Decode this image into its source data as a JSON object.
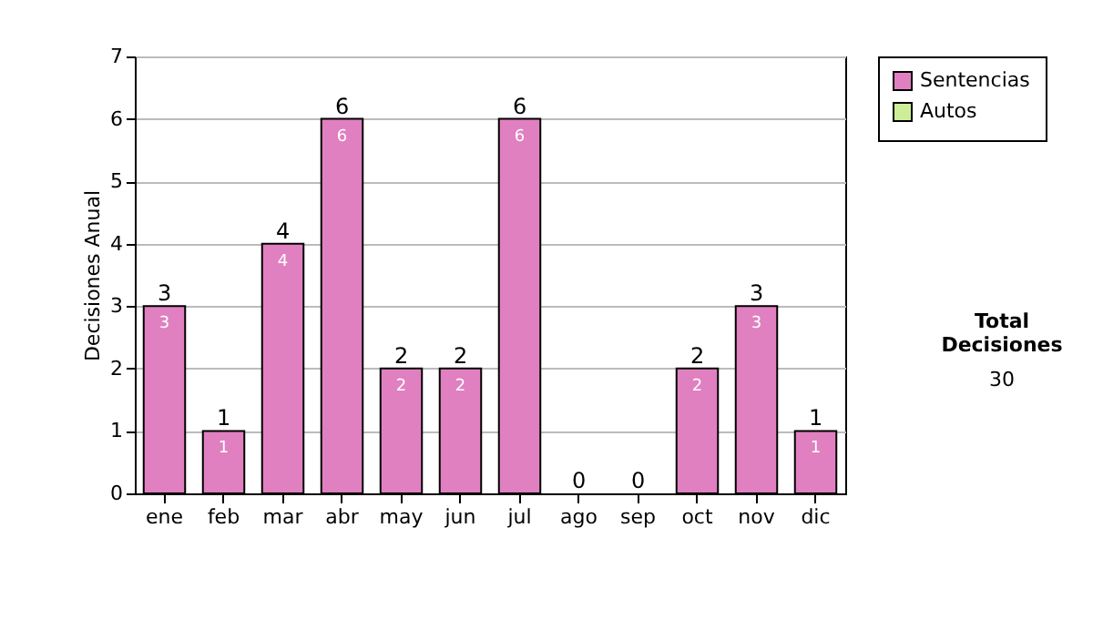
{
  "chart_data": {
    "type": "bar",
    "stacked": true,
    "ylabel": "Decisiones Anual",
    "categories": [
      "ene",
      "feb",
      "mar",
      "abr",
      "may",
      "jun",
      "jul",
      "ago",
      "sep",
      "oct",
      "nov",
      "dic"
    ],
    "series": [
      {
        "name": "Sentencias",
        "color": "#e080c0",
        "values": [
          3,
          1,
          4,
          6,
          2,
          2,
          6,
          0,
          0,
          2,
          3,
          1
        ],
        "value_labels": [
          "3",
          "1",
          "4",
          "6",
          "2",
          "2",
          "6",
          null,
          null,
          "2",
          "3",
          "1"
        ]
      },
      {
        "name": "Autos",
        "color": "#ccee99",
        "values": [
          0,
          0,
          0,
          0,
          0,
          0,
          0,
          0,
          0,
          0,
          0,
          0
        ]
      }
    ],
    "totals": [
      "3",
      "1",
      "4",
      "6",
      "2",
      "2",
      "6",
      "0",
      "0",
      "2",
      "3",
      "1"
    ],
    "ylim": [
      0,
      7
    ],
    "yticks": [
      0,
      1,
      2,
      3,
      4,
      5,
      6,
      7
    ],
    "grid": "y",
    "legend": "right",
    "annotations": [
      "Total Decisiones",
      "30"
    ]
  }
}
